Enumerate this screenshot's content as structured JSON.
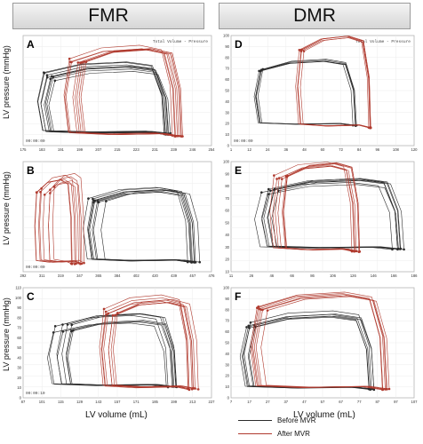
{
  "headers": [
    "FMR",
    "DMR"
  ],
  "y_axis_label": "LV pressure (mmHg)",
  "x_axis_label": "LV volume (mL)",
  "legend": [
    {
      "label": "Before MVR",
      "color": "#2b2b2b"
    },
    {
      "label": "After MVR",
      "color": "#b03a2e"
    }
  ],
  "chart_data": [
    {
      "type": "line",
      "panel": "A",
      "title": "Total Volume - Pressure",
      "time": "00:00:00",
      "xticks": [
        "175",
        "183",
        "191",
        "199",
        "207",
        "215",
        "223",
        "231",
        "239",
        "246",
        "254"
      ],
      "yticks": [],
      "series": [
        {
          "name": "Before MVR",
          "loop": {
            "vmin": 184,
            "vmax": 236,
            "pmin": 12,
            "pmax": 86
          },
          "count": 8,
          "spread": [
            3,
            3
          ]
        },
        {
          "name": "After MVR",
          "loop": {
            "vmin": 195,
            "vmax": 240,
            "pmin": 10,
            "pmax": 106
          },
          "count": 8,
          "spread": [
            3,
            2
          ]
        }
      ],
      "xrange": [
        175,
        254
      ],
      "yrange": [
        0,
        120
      ]
    },
    {
      "type": "line",
      "panel": "B",
      "title": "",
      "time": "00:00:00",
      "xticks": [
        "292",
        "311",
        "319",
        "347",
        "365",
        "384",
        "402",
        "420",
        "439",
        "457",
        "476"
      ],
      "yticks": [],
      "series": [
        {
          "name": "Before MVR",
          "loop": {
            "vmin": 356,
            "vmax": 458,
            "pmin": 10,
            "pmax": 90
          },
          "count": 8,
          "spread": [
            4,
            2
          ]
        },
        {
          "name": "After MVR",
          "loop": {
            "vmin": 312,
            "vmax": 345,
            "pmin": 8,
            "pmax": 102
          },
          "count": 8,
          "spread": [
            3,
            3
          ]
        }
      ],
      "xrange": [
        292,
        476
      ],
      "yrange": [
        0,
        120
      ]
    },
    {
      "type": "line",
      "panel": "C",
      "title": "",
      "time": "00:00:10",
      "xticks": [
        "87",
        "101",
        "115",
        "129",
        "143",
        "157",
        "171",
        "185",
        "199",
        "213",
        "227"
      ],
      "yticks": [
        "0",
        "10",
        "20",
        "30",
        "40",
        "50",
        "60",
        "70",
        "80",
        "90",
        "100",
        "110"
      ],
      "series": [
        {
          "name": "Before MVR",
          "loop": {
            "vmin": 112,
            "vmax": 198,
            "pmin": 10,
            "pmax": 80
          },
          "count": 8,
          "spread": [
            4,
            3
          ]
        },
        {
          "name": "After MVR",
          "loop": {
            "vmin": 150,
            "vmax": 214,
            "pmin": 8,
            "pmax": 100
          },
          "count": 8,
          "spread": [
            3,
            3
          ]
        }
      ],
      "xrange": [
        87,
        227
      ],
      "yrange": [
        0,
        110
      ]
    },
    {
      "type": "line",
      "panel": "D",
      "title": "Total Volume - Pressure",
      "time": "00:00:00",
      "xticks": [
        "1",
        "12",
        "24",
        "36",
        "48",
        "60",
        "72",
        "84",
        "96",
        "108",
        "120"
      ],
      "yticks": [
        "0",
        "10",
        "20",
        "30",
        "40",
        "50",
        "60",
        "70",
        "80",
        "90",
        "100"
      ],
      "series": [
        {
          "name": "Before MVR",
          "loop": {
            "vmin": 17,
            "vmax": 82,
            "pmin": 18,
            "pmax": 78
          },
          "count": 5,
          "spread": [
            1,
            1
          ]
        },
        {
          "name": "After MVR",
          "loop": {
            "vmin": 44,
            "vmax": 91,
            "pmin": 16,
            "pmax": 98
          },
          "count": 5,
          "spread": [
            1,
            1
          ]
        }
      ],
      "xrange": [
        1,
        120
      ],
      "yrange": [
        0,
        100
      ]
    },
    {
      "type": "line",
      "panel": "E",
      "title": "",
      "time": "",
      "xticks": [
        "11",
        "26",
        "46",
        "66",
        "86",
        "106",
        "126",
        "146",
        "166",
        "186"
      ],
      "yticks": [
        "10",
        "20",
        "30",
        "40",
        "50",
        "60",
        "70",
        "80",
        "90",
        "100"
      ],
      "series": [
        {
          "name": "Before MVR",
          "loop": {
            "vmin": 40,
            "vmax": 170,
            "pmin": 30,
            "pmax": 92
          },
          "count": 7,
          "spread": [
            3,
            2
          ]
        },
        {
          "name": "After MVR",
          "loop": {
            "vmin": 52,
            "vmax": 130,
            "pmin": 28,
            "pmax": 108
          },
          "count": 7,
          "spread": [
            3,
            2
          ]
        }
      ],
      "xrange": [
        11,
        186
      ],
      "yrange": [
        10,
        110
      ]
    },
    {
      "type": "line",
      "panel": "F",
      "title": "",
      "time": "",
      "xticks": [
        "7",
        "17",
        "27",
        "37",
        "47",
        "57",
        "67",
        "77",
        "87",
        "97",
        "107"
      ],
      "yticks": [
        "0",
        "10",
        "20",
        "30",
        "40",
        "50",
        "60",
        "70",
        "80",
        "90",
        "100"
      ],
      "series": [
        {
          "name": "Before MVR",
          "loop": {
            "vmin": 14,
            "vmax": 84,
            "pmin": 8,
            "pmax": 84
          },
          "count": 6,
          "spread": [
            2,
            2
          ]
        },
        {
          "name": "After MVR",
          "loop": {
            "vmin": 20,
            "vmax": 92,
            "pmin": 8,
            "pmax": 104
          },
          "count": 6,
          "spread": [
            2,
            2
          ]
        }
      ],
      "xrange": [
        7,
        107
      ],
      "yrange": [
        0,
        110
      ]
    }
  ]
}
